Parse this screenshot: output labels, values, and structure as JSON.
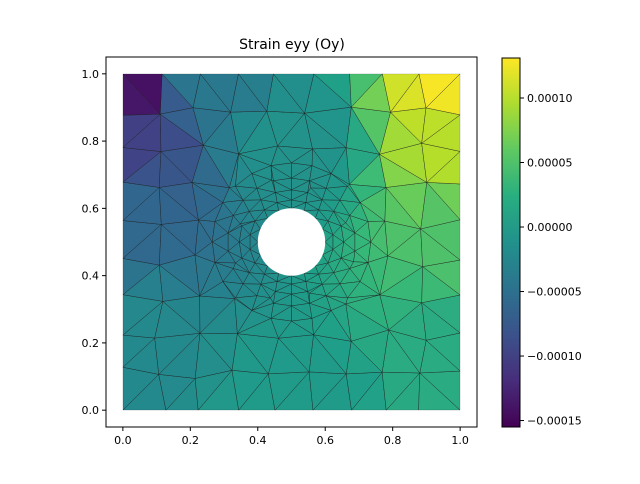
{
  "chart_data": {
    "type": "heatmap",
    "title": "Strain eyy (Oy)",
    "xlabel": "",
    "ylabel": "",
    "xlim": [
      -0.05,
      1.05
    ],
    "ylim": [
      -0.05,
      1.05
    ],
    "x_ticks": [
      0.0,
      0.2,
      0.4,
      0.6,
      0.8,
      1.0
    ],
    "x_tick_labels": [
      "0.0",
      "0.2",
      "0.4",
      "0.6",
      "0.8",
      "1.0"
    ],
    "y_ticks": [
      0.0,
      0.2,
      0.4,
      0.6,
      0.8,
      1.0
    ],
    "y_tick_labels": [
      "0.0",
      "0.2",
      "0.4",
      "0.6",
      "0.8",
      "1.0"
    ],
    "domain": {
      "x": [
        0,
        1
      ],
      "y": [
        0,
        1
      ]
    },
    "hole": {
      "cx": 0.5,
      "cy": 0.5,
      "r": 0.1
    },
    "mesh": "triangular, refined around the hole, dark edge lines",
    "colormap": "viridis",
    "colorbar": {
      "vmin": -0.000155,
      "vmax": 0.000131,
      "ticks": [
        0.0001,
        5e-05,
        0.0,
        -5e-05,
        -0.0001,
        -0.00015
      ],
      "tick_labels": [
        "0.00010",
        "0.00005",
        "0.00000",
        "−0.00005",
        "−0.00010",
        "−0.00015"
      ]
    },
    "field_estimates": [
      {
        "x": 0.0,
        "y": 1.0,
        "value": -0.00015
      },
      {
        "x": 0.0,
        "y": 0.8,
        "value": -0.0001
      },
      {
        "x": 0.0,
        "y": 0.6,
        "value": -6e-05
      },
      {
        "x": 0.25,
        "y": 1.0,
        "value": -4e-05
      },
      {
        "x": 0.5,
        "y": 0.8,
        "value": -1e-05
      },
      {
        "x": 0.0,
        "y": 0.2,
        "value": -2e-05
      },
      {
        "x": 0.5,
        "y": 0.0,
        "value": 0.0
      },
      {
        "x": 1.0,
        "y": 0.2,
        "value": 2e-05
      },
      {
        "x": 1.0,
        "y": 0.5,
        "value": 5e-05
      },
      {
        "x": 1.0,
        "y": 0.8,
        "value": 0.0001
      },
      {
        "x": 1.0,
        "y": 1.0,
        "value": 0.00013
      }
    ]
  }
}
